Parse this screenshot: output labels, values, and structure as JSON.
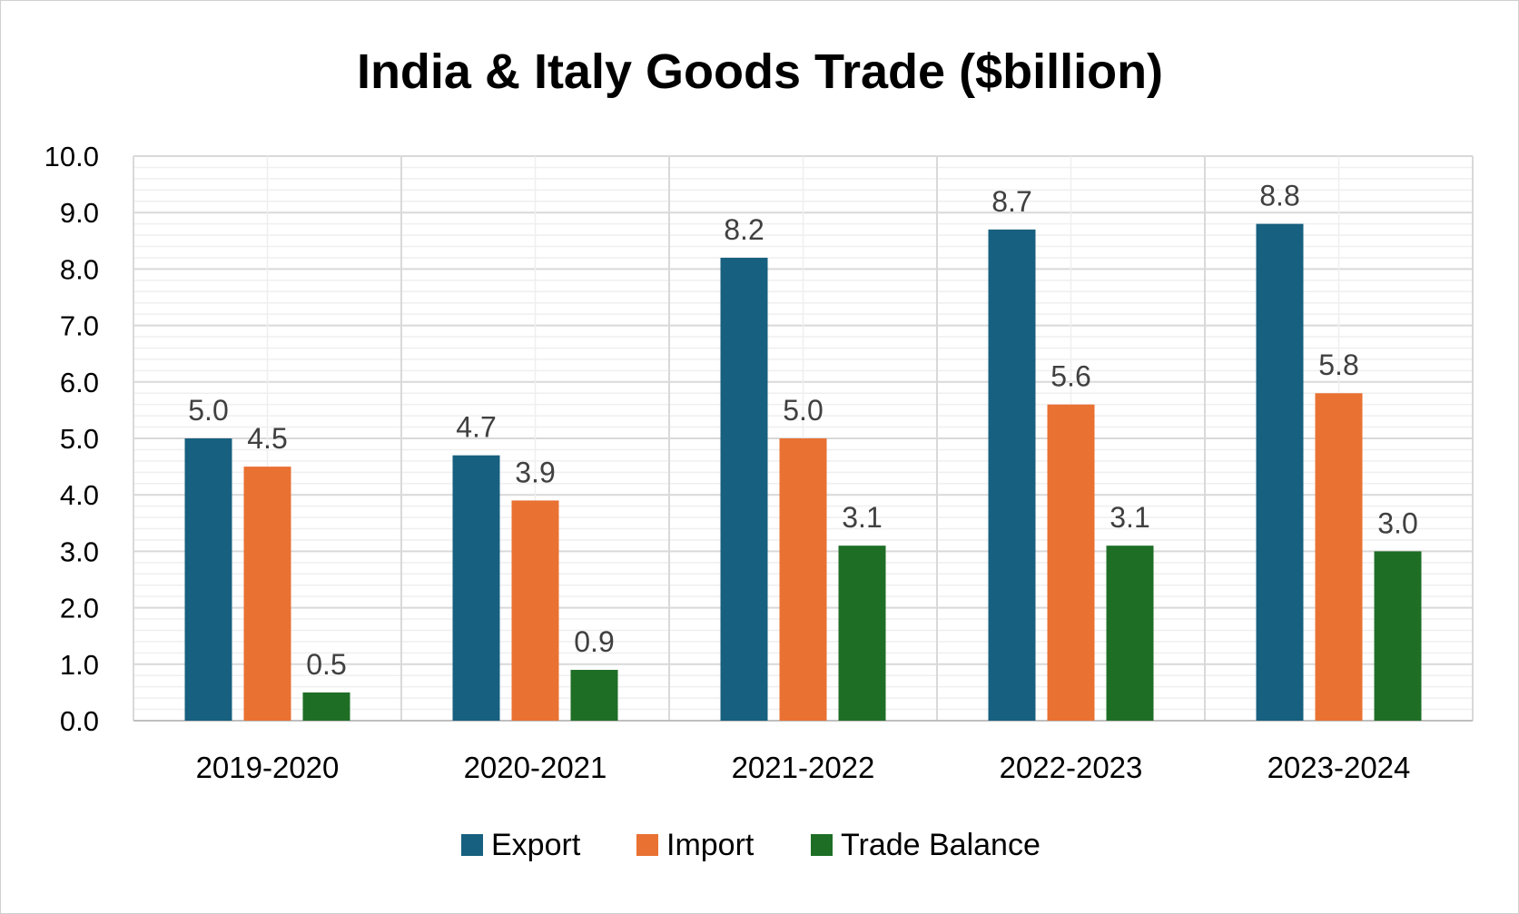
{
  "chart_data": {
    "type": "bar",
    "title": "India & Italy Goods Trade ($billion)",
    "categories": [
      "2019-2020",
      "2020-2021",
      "2021-2022",
      "2022-2023",
      "2023-2024"
    ],
    "series": [
      {
        "name": "Export",
        "color": "#17607f",
        "values": [
          5.0,
          4.7,
          8.2,
          8.7,
          8.8
        ]
      },
      {
        "name": "Import",
        "color": "#e97132",
        "values": [
          4.5,
          3.9,
          5.0,
          5.6,
          5.8
        ]
      },
      {
        "name": "Trade Balance",
        "color": "#1e6e26",
        "values": [
          0.5,
          0.9,
          3.1,
          3.1,
          3.0
        ]
      }
    ],
    "data_labels": [
      [
        "5.0",
        "4.7",
        "8.2",
        "8.7",
        "8.8"
      ],
      [
        "4.5",
        "3.9",
        "5.0",
        "5.6",
        "5.8"
      ],
      [
        "0.5",
        "0.9",
        "3.1",
        "3.1",
        "3.0"
      ]
    ],
    "y_ticks": [
      "0.0",
      "1.0",
      "2.0",
      "3.0",
      "4.0",
      "5.0",
      "6.0",
      "7.0",
      "8.0",
      "9.0",
      "10.0"
    ],
    "ylim": [
      0,
      10
    ],
    "grid": true,
    "legend_position": "bottom"
  }
}
